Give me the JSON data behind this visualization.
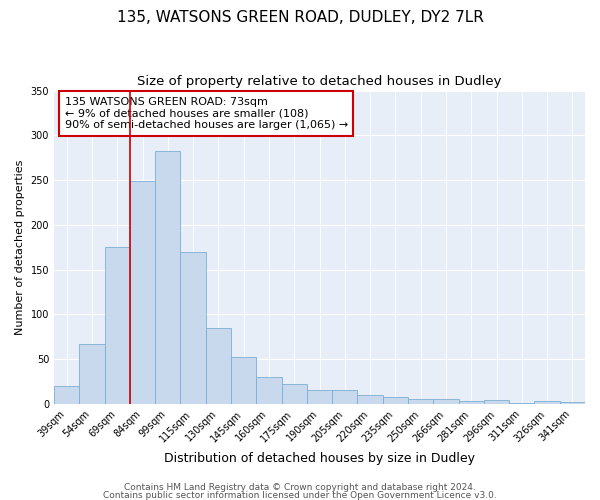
{
  "title": "135, WATSONS GREEN ROAD, DUDLEY, DY2 7LR",
  "subtitle": "Size of property relative to detached houses in Dudley",
  "xlabel": "Distribution of detached houses by size in Dudley",
  "ylabel": "Number of detached properties",
  "bar_labels": [
    "39sqm",
    "54sqm",
    "69sqm",
    "84sqm",
    "99sqm",
    "115sqm",
    "130sqm",
    "145sqm",
    "160sqm",
    "175sqm",
    "190sqm",
    "205sqm",
    "220sqm",
    "235sqm",
    "250sqm",
    "266sqm",
    "281sqm",
    "296sqm",
    "311sqm",
    "326sqm",
    "341sqm"
  ],
  "bar_values": [
    20,
    67,
    175,
    249,
    282,
    170,
    85,
    52,
    30,
    22,
    15,
    15,
    10,
    8,
    5,
    5,
    3,
    4,
    1,
    3,
    2
  ],
  "bar_color": "#c9d9ed",
  "bar_edge_color": "#7bafd4",
  "ylim": [
    0,
    350
  ],
  "yticks": [
    0,
    50,
    100,
    150,
    200,
    250,
    300,
    350
  ],
  "vline_color": "#cc0000",
  "vline_index": 2,
  "annotation_line1": "135 WATSONS GREEN ROAD: 73sqm",
  "annotation_line2": "← 9% of detached houses are smaller (108)",
  "annotation_line3": "90% of semi-detached houses are larger (1,065) →",
  "annotation_box_color": "#ffffff",
  "annotation_box_edge": "#cc0000",
  "footer1": "Contains HM Land Registry data © Crown copyright and database right 2024.",
  "footer2": "Contains public sector information licensed under the Open Government Licence v3.0.",
  "fig_bg_color": "#ffffff",
  "plot_bg_color": "#e8eef7",
  "grid_color": "#ffffff",
  "title_fontsize": 11,
  "subtitle_fontsize": 9.5,
  "xlabel_fontsize": 9,
  "ylabel_fontsize": 8,
  "tick_fontsize": 7,
  "annotation_fontsize": 8,
  "footer_fontsize": 6.5
}
